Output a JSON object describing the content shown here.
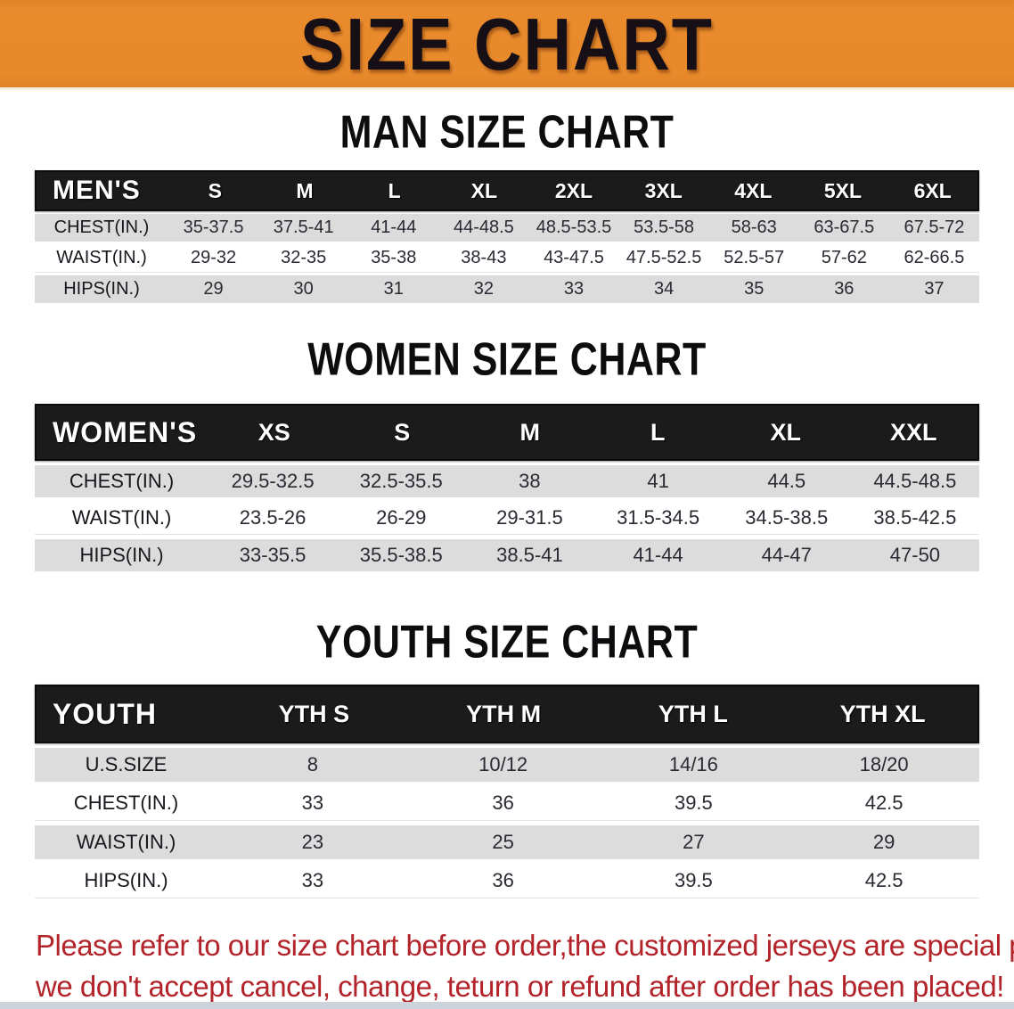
{
  "banner": {
    "title": "SIZE CHART",
    "bg_color": "#e8892b",
    "text_color": "#161016"
  },
  "sections": {
    "men": {
      "title": "MAN SIZE CHART",
      "header_label": "MEN'S",
      "sizes": [
        "S",
        "M",
        "L",
        "XL",
        "2XL",
        "3XL",
        "4XL",
        "5XL",
        "6XL"
      ],
      "rows": [
        {
          "label": "CHEST(IN.)",
          "values": [
            "35-37.5",
            "37.5-41",
            "41-44",
            "44-48.5",
            "48.5-53.5",
            "53.5-58",
            "58-63",
            "63-67.5",
            "67.5-72"
          ]
        },
        {
          "label": "WAIST(IN.)",
          "values": [
            "29-32",
            "32-35",
            "35-38",
            "38-43",
            "43-47.5",
            "47.5-52.5",
            "52.5-57",
            "57-62",
            "62-66.5"
          ]
        },
        {
          "label": "HIPS(IN.)",
          "values": [
            "29",
            "30",
            "31",
            "32",
            "33",
            "34",
            "35",
            "36",
            "37"
          ]
        }
      ]
    },
    "women": {
      "title": "WOMEN SIZE CHART",
      "header_label": "WOMEN'S",
      "sizes": [
        "XS",
        "S",
        "M",
        "L",
        "XL",
        "XXL"
      ],
      "rows": [
        {
          "label": "CHEST(IN.)",
          "values": [
            "29.5-32.5",
            "32.5-35.5",
            "38",
            "41",
            "44.5",
            "44.5-48.5"
          ]
        },
        {
          "label": "WAIST(IN.)",
          "values": [
            "23.5-26",
            "26-29",
            "29-31.5",
            "31.5-34.5",
            "34.5-38.5",
            "38.5-42.5"
          ]
        },
        {
          "label": "HIPS(IN.)",
          "values": [
            "33-35.5",
            "35.5-38.5",
            "38.5-41",
            "41-44",
            "44-47",
            "47-50"
          ]
        }
      ]
    },
    "youth": {
      "title": "YOUTH SIZE CHART",
      "header_label": "YOUTH",
      "sizes": [
        "YTH S",
        "YTH M",
        "YTH L",
        "YTH XL"
      ],
      "rows": [
        {
          "label": "U.S.SIZE",
          "values": [
            "8",
            "10/12",
            "14/16",
            "18/20"
          ]
        },
        {
          "label": "CHEST(IN.)",
          "values": [
            "33",
            "36",
            "39.5",
            "42.5"
          ]
        },
        {
          "label": "WAIST(IN.)",
          "values": [
            "23",
            "25",
            "27",
            "29"
          ]
        },
        {
          "label": "HIPS(IN.)",
          "values": [
            "33",
            "36",
            "39.5",
            "42.5"
          ]
        }
      ]
    }
  },
  "footer": {
    "line1": "Please refer to our size chart before order,the customized jerseys are special products,",
    "line2": "we don't accept cancel, change, teturn or refund after order has been placed!",
    "text_color": "#b2232a"
  }
}
